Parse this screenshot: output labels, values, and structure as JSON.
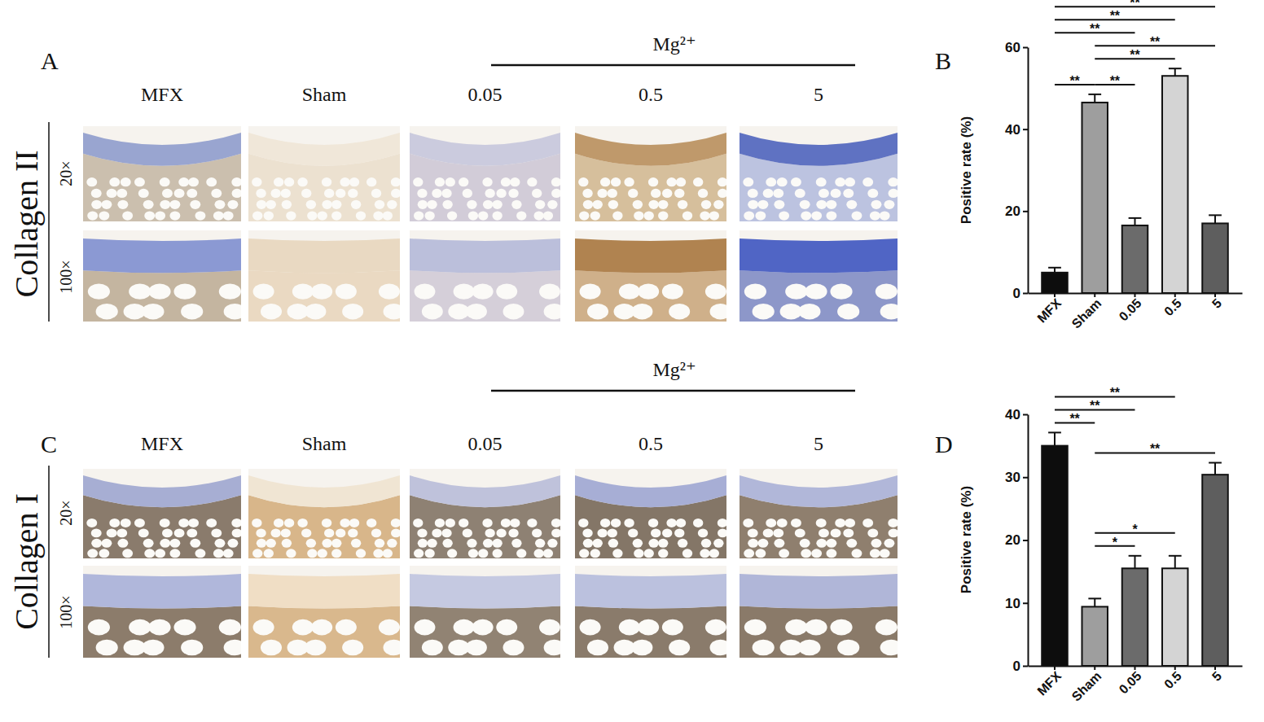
{
  "figure": {
    "panels": [
      {
        "letter": "A",
        "group_label": "Mg²⁺",
        "columns": [
          "MFX",
          "Sham",
          "0.05",
          "0.5",
          "5"
        ],
        "row_label": "Collagen II",
        "magnifications": [
          "20×",
          "100×"
        ]
      },
      {
        "letter": "C",
        "group_label": "Mg²⁺",
        "columns": [
          "MFX",
          "Sham",
          "0.05",
          "0.5",
          "5"
        ],
        "row_label": "Collagen I",
        "magnifications": [
          "20×",
          "100×"
        ]
      }
    ]
  },
  "chart_data": [
    {
      "letter": "B",
      "type": "bar",
      "categories": [
        "MFX",
        "Sham",
        "0.05",
        "0.5",
        "5"
      ],
      "values": [
        5,
        46.5,
        16.5,
        53,
        17
      ],
      "errors": [
        1.2,
        2,
        1.8,
        1.8,
        2
      ],
      "colors": [
        "#0d0d0d",
        "#9e9e9e",
        "#6b6b6b",
        "#d4d4d4",
        "#5e5e5e"
      ],
      "ylim": [
        0,
        60
      ],
      "yticks": [
        0,
        20,
        40,
        60
      ],
      "y_label": "Positive rate (%)",
      "brackets": [
        {
          "from": "MFX",
          "to": "Sham",
          "label": "**"
        },
        {
          "from": "Sham",
          "to": "0.05",
          "label": "**"
        },
        {
          "from": "Sham",
          "to": "0.5",
          "label": "**"
        },
        {
          "from": "Sham",
          "to": "5",
          "label": "**"
        },
        {
          "from": "MFX",
          "to": "0.05",
          "label": "**"
        },
        {
          "from": "MFX",
          "to": "0.5",
          "label": "**"
        },
        {
          "from": "MFX",
          "to": "5",
          "label": "**"
        }
      ]
    },
    {
      "letter": "D",
      "type": "bar",
      "categories": [
        "MFX",
        "Sham",
        "0.05",
        "0.5",
        "5"
      ],
      "values": [
        35,
        9.4,
        15.5,
        15.5,
        30.4
      ],
      "errors": [
        2.1,
        1.3,
        2,
        2,
        1.9
      ],
      "colors": [
        "#0d0d0d",
        "#9e9e9e",
        "#6b6b6b",
        "#d4d4d4",
        "#5e5e5e"
      ],
      "ylim": [
        0,
        40
      ],
      "yticks": [
        0,
        10,
        20,
        30,
        40
      ],
      "y_label": "Positive rate (%)",
      "brackets": [
        {
          "from": "Sham",
          "to": "0.05",
          "label": "*"
        },
        {
          "from": "Sham",
          "to": "0.5",
          "label": "*"
        },
        {
          "from": "Sham",
          "to": "5",
          "label": "**"
        },
        {
          "from": "MFX",
          "to": "Sham",
          "label": "**"
        },
        {
          "from": "MFX",
          "to": "0.05",
          "label": "**"
        },
        {
          "from": "MFX",
          "to": "0.5",
          "label": "**"
        }
      ]
    }
  ]
}
